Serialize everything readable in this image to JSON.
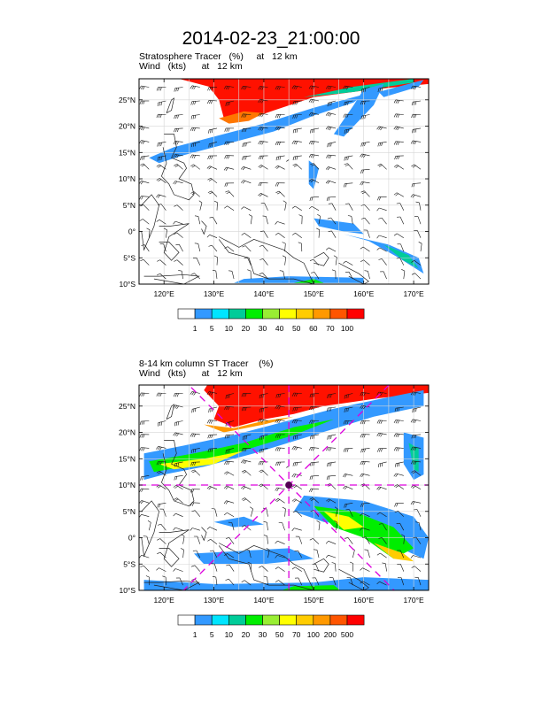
{
  "title": "2014-02-23_21:00:00",
  "panels": [
    {
      "name": "Stratosphere Tracer",
      "subtitle_line1": "Stratosphere Tracer   (%)     at   12 km",
      "subtitle_line2": "Wind   (kts)      at   12 km",
      "lat_ticks": [
        "25°N",
        "20°N",
        "15°N",
        "10°N",
        "5°N",
        "0°",
        "5°S",
        "10°S"
      ],
      "lon_ticks": [
        "120°E",
        "130°E",
        "140°E",
        "150°E",
        "160°E",
        "170°E"
      ],
      "colorbar": {
        "labels": [
          "1",
          "5",
          "10",
          "20",
          "30",
          "40",
          "50",
          "60",
          "70",
          "100"
        ],
        "colors": [
          "#ffffff",
          "#3399ff",
          "#00e5ff",
          "#00cc99",
          "#00ee00",
          "#99ee33",
          "#ffff00",
          "#ffcc00",
          "#ff9900",
          "#ff5500",
          "#ff0000"
        ]
      }
    },
    {
      "name": "8-14 km column ST Tracer",
      "subtitle_line1": "8-14 km column ST Tracer    (%)",
      "subtitle_line2": "Wind   (kts)      at   12 km",
      "lat_ticks": [
        "25°N",
        "20°N",
        "15°N",
        "10°N",
        "5°N",
        "0°",
        "5°S",
        "10°S"
      ],
      "lon_ticks": [
        "120°E",
        "130°E",
        "140°E",
        "150°E",
        "160°E",
        "170°E"
      ],
      "colorbar": {
        "labels": [
          "1",
          "5",
          "10",
          "20",
          "30",
          "50",
          "70",
          "100",
          "200",
          "500"
        ],
        "colors": [
          "#ffffff",
          "#3399ff",
          "#00e5ff",
          "#00cc99",
          "#00ee00",
          "#99ee33",
          "#ffff00",
          "#ffcc00",
          "#ff9900",
          "#ff5500",
          "#ff0000"
        ]
      },
      "cross_section_center": {
        "lon": 145,
        "lat": 10
      },
      "overlay_color": "#dd00dd"
    }
  ],
  "map_extent": {
    "lon_min": 115,
    "lon_max": 173,
    "lat_min": -10,
    "lat_max": 29
  }
}
